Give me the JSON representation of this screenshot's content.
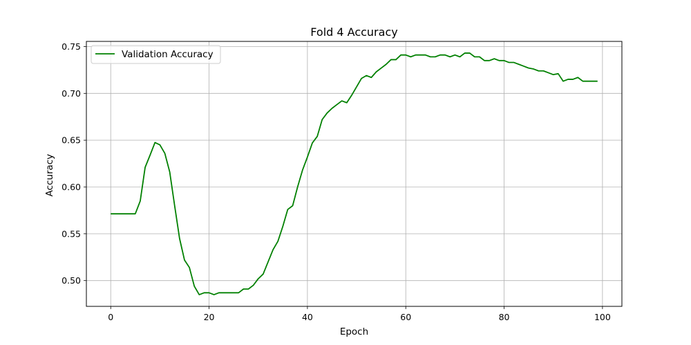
{
  "chart_data": {
    "type": "line",
    "title": "Fold 4 Accuracy",
    "xlabel": "Epoch",
    "ylabel": "Accuracy",
    "xlim": [
      -4.95,
      103.95
    ],
    "ylim": [
      0.4725,
      0.7555
    ],
    "xticks": [
      0,
      20,
      40,
      60,
      80,
      100
    ],
    "xtick_labels": [
      "0",
      "20",
      "40",
      "60",
      "80",
      "100"
    ],
    "yticks": [
      0.5,
      0.55,
      0.6,
      0.65,
      0.7,
      0.75
    ],
    "ytick_labels": [
      "0.50",
      "0.55",
      "0.60",
      "0.65",
      "0.70",
      "0.75"
    ],
    "grid": true,
    "legend_position": "upper-left",
    "series": [
      {
        "name": "Validation Accuracy",
        "color": "#008000",
        "x": [
          0,
          1,
          2,
          3,
          4,
          5,
          6,
          7,
          8,
          9,
          10,
          11,
          12,
          13,
          14,
          15,
          16,
          17,
          18,
          19,
          20,
          21,
          22,
          23,
          24,
          25,
          26,
          27,
          28,
          29,
          30,
          31,
          32,
          33,
          34,
          35,
          36,
          37,
          38,
          39,
          40,
          41,
          42,
          43,
          44,
          45,
          46,
          47,
          48,
          49,
          50,
          51,
          52,
          53,
          54,
          55,
          56,
          57,
          58,
          59,
          60,
          61,
          62,
          63,
          64,
          65,
          66,
          67,
          68,
          69,
          70,
          71,
          72,
          73,
          74,
          75,
          76,
          77,
          78,
          79,
          80,
          81,
          82,
          83,
          84,
          85,
          86,
          87,
          88,
          89,
          90,
          91,
          92,
          93,
          94,
          95,
          96,
          97,
          98,
          99
        ],
        "values": [
          0.5714,
          0.5714,
          0.5714,
          0.5714,
          0.5714,
          0.5714,
          0.585,
          0.621,
          0.634,
          0.6475,
          0.645,
          0.636,
          0.616,
          0.58,
          0.545,
          0.522,
          0.514,
          0.494,
          0.485,
          0.487,
          0.487,
          0.485,
          0.487,
          0.487,
          0.487,
          0.487,
          0.487,
          0.491,
          0.491,
          0.495,
          0.502,
          0.507,
          0.52,
          0.533,
          0.542,
          0.558,
          0.576,
          0.58,
          0.6,
          0.618,
          0.632,
          0.647,
          0.654,
          0.672,
          0.679,
          0.684,
          0.688,
          0.692,
          0.69,
          0.698,
          0.707,
          0.716,
          0.719,
          0.717,
          0.723,
          0.727,
          0.731,
          0.736,
          0.736,
          0.741,
          0.741,
          0.739,
          0.741,
          0.741,
          0.741,
          0.739,
          0.739,
          0.741,
          0.741,
          0.739,
          0.741,
          0.739,
          0.743,
          0.743,
          0.739,
          0.739,
          0.735,
          0.735,
          0.737,
          0.735,
          0.735,
          0.733,
          0.733,
          0.731,
          0.729,
          0.727,
          0.726,
          0.724,
          0.724,
          0.722,
          0.72,
          0.721,
          0.713,
          0.715,
          0.715,
          0.717,
          0.713,
          0.713,
          0.713,
          0.713
        ]
      }
    ]
  }
}
